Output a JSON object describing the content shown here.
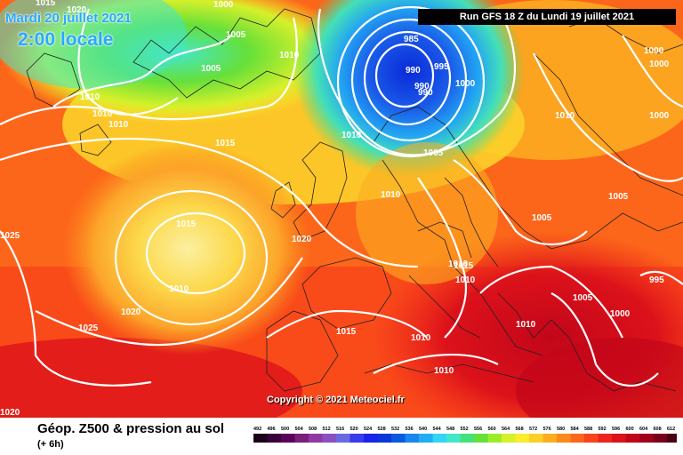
{
  "header": {
    "date": "Mardi 20 juillet 2021",
    "time": "2:00 locale",
    "run": "Run GFS 18 Z du Lundi 19 juillet 2021"
  },
  "footer": {
    "field": "Géop. Z500 & pression au sol",
    "lead": "(+ 6h)",
    "copyright": "Copyright © 2021 Meteociel.fr"
  },
  "scale": {
    "ticks": [
      "492",
      "496",
      "500",
      "504",
      "508",
      "512",
      "516",
      "520",
      "524",
      "528",
      "532",
      "536",
      "540",
      "544",
      "548",
      "552",
      "556",
      "560",
      "564",
      "568",
      "572",
      "576",
      "580",
      "584",
      "588",
      "592",
      "596",
      "600",
      "604",
      "608",
      "612"
    ],
    "colors": [
      "#1a001a",
      "#3a003a",
      "#5b005b",
      "#7a1e7a",
      "#8f3aa0",
      "#8a50c0",
      "#6a6ae0",
      "#3a3aee",
      "#1a22e8",
      "#0a36d8",
      "#0a5ae0",
      "#1a86ee",
      "#22acf4",
      "#34d4f4",
      "#44e6c8",
      "#44e07a",
      "#66e03a",
      "#9cec2a",
      "#d6f02a",
      "#fcec2a",
      "#fcd02a",
      "#fcae22",
      "#fc8a1a",
      "#fc661a",
      "#f8441a",
      "#ee241a",
      "#dc121a",
      "#c2061a",
      "#a0021a",
      "#7a001a",
      "#4a0010"
    ]
  },
  "isobars": {
    "labels": [
      {
        "text": "1015"
      },
      {
        "text": "1020"
      },
      {
        "text": "1000"
      },
      {
        "text": "1005"
      },
      {
        "text": "1005"
      },
      {
        "text": "1010"
      },
      {
        "text": "1010"
      },
      {
        "text": "1010"
      },
      {
        "text": "1010"
      },
      {
        "text": "1015"
      },
      {
        "text": "985"
      },
      {
        "text": "990"
      },
      {
        "text": "995"
      },
      {
        "text": "990"
      },
      {
        "text": "990"
      },
      {
        "text": "1000"
      },
      {
        "text": "1010"
      },
      {
        "text": "1005"
      },
      {
        "text": "1000"
      },
      {
        "text": "1000"
      },
      {
        "text": "1010"
      },
      {
        "text": "1000"
      },
      {
        "text": "1010"
      },
      {
        "text": "1005"
      },
      {
        "text": "1005"
      },
      {
        "text": "1025"
      },
      {
        "text": "1015"
      },
      {
        "text": "1010"
      },
      {
        "text": "1020"
      },
      {
        "text": "1020"
      },
      {
        "text": "1015"
      },
      {
        "text": "1010"
      },
      {
        "text": "1010"
      },
      {
        "text": "1010"
      },
      {
        "text": "995"
      },
      {
        "text": "1005"
      },
      {
        "text": "1000"
      },
      {
        "text": "1025"
      },
      {
        "text": "1015"
      },
      {
        "text": "1010"
      },
      {
        "text": "1010"
      },
      {
        "text": "1020"
      }
    ]
  }
}
